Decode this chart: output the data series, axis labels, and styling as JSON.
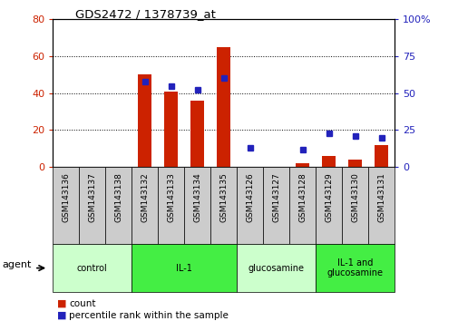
{
  "title": "GDS2472 / 1378739_at",
  "samples": [
    "GSM143136",
    "GSM143137",
    "GSM143138",
    "GSM143132",
    "GSM143133",
    "GSM143134",
    "GSM143135",
    "GSM143126",
    "GSM143127",
    "GSM143128",
    "GSM143129",
    "GSM143130",
    "GSM143131"
  ],
  "count_values": [
    0,
    0,
    0,
    50,
    41,
    36,
    65,
    0,
    0,
    2,
    6,
    4,
    12
  ],
  "percentile_values": [
    null,
    null,
    null,
    58,
    55,
    52,
    60,
    13,
    null,
    12,
    23,
    21,
    20
  ],
  "groups": [
    {
      "label": "control",
      "start": 0,
      "end": 3,
      "color": "#ccffcc"
    },
    {
      "label": "IL-1",
      "start": 3,
      "end": 7,
      "color": "#44ee44"
    },
    {
      "label": "glucosamine",
      "start": 7,
      "end": 10,
      "color": "#ccffcc"
    },
    {
      "label": "IL-1 and\nglucosamine",
      "start": 10,
      "end": 13,
      "color": "#44ee44"
    }
  ],
  "ylim_left": [
    0,
    80
  ],
  "ylim_right": [
    0,
    100
  ],
  "yticks_left": [
    0,
    20,
    40,
    60,
    80
  ],
  "yticks_right": [
    0,
    25,
    50,
    75,
    100
  ],
  "bar_color": "#cc2200",
  "dot_color": "#2222bb",
  "bar_width": 0.5,
  "agent_label": "agent",
  "legend_count": "count",
  "legend_percentile": "percentile rank within the sample",
  "tick_bg": "#cccccc"
}
